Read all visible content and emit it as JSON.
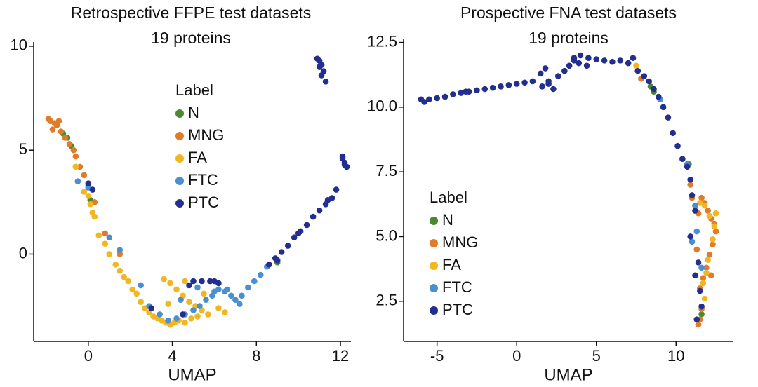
{
  "chart_data": [
    {
      "type": "scatter",
      "title": "Retrospective FFPE test datasets",
      "subtitle": "19 proteins",
      "x_label": "UMAP",
      "legend_title": "Label",
      "xlim": [
        -2.6,
        12.5
      ],
      "ylim": [
        -4.2,
        10.2
      ],
      "xticks": [
        0,
        4,
        8,
        12
      ],
      "yticks": [
        0,
        5,
        10
      ],
      "grid": false,
      "series": [
        {
          "name": "N",
          "color": "#4a8a2f",
          "x": [
            -1.2,
            -1.0,
            -0.8,
            0.1,
            9.0
          ],
          "values": [
            5.8,
            5.6,
            5.2,
            2.6,
            -0.4
          ]
        },
        {
          "name": "MNG",
          "color": "#e07b2a",
          "x": [
            -1.9,
            -1.8,
            -1.6,
            -1.5,
            -1.3,
            -1.1,
            -0.9,
            -0.7,
            -0.6,
            -0.4,
            -0.2,
            0.0,
            0.3,
            0.8,
            1.5,
            -1.7,
            -1.4
          ],
          "values": [
            6.5,
            6.4,
            6.3,
            6.2,
            5.9,
            5.6,
            5.3,
            5.0,
            4.7,
            4.2,
            3.8,
            3.3,
            2.5,
            1.0,
            0.0,
            6.0,
            6.4
          ]
        },
        {
          "name": "FA",
          "color": "#f2b623",
          "x": [
            0.0,
            0.1,
            0.2,
            0.3,
            0.5,
            0.8,
            1.0,
            1.3,
            1.5,
            1.7,
            1.9,
            2.1,
            2.3,
            2.5,
            2.7,
            2.9,
            3.1,
            3.3,
            3.5,
            3.7,
            3.9,
            4.1,
            4.3,
            4.6,
            4.9,
            5.2,
            3.6,
            3.9,
            4.2,
            4.5,
            4.8,
            5.1,
            5.4,
            5.7,
            3.8,
            4.6,
            5.5,
            6.2,
            6.5,
            -0.2,
            -0.6
          ],
          "values": [
            2.8,
            2.4,
            2.0,
            1.8,
            0.9,
            0.5,
            0.0,
            -0.5,
            -0.8,
            -1.1,
            -1.3,
            -1.7,
            -1.9,
            -2.3,
            -2.6,
            -2.8,
            -3.0,
            -3.1,
            -3.2,
            -3.3,
            -3.4,
            -3.3,
            -3.2,
            -3.3,
            -3.1,
            -3.0,
            -1.2,
            -1.4,
            -1.7,
            -2.0,
            -2.3,
            -2.5,
            -2.7,
            -2.9,
            -2.4,
            -1.3,
            -1.9,
            -2.6,
            -2.8,
            3.0,
            4.2
          ]
        },
        {
          "name": "FTC",
          "color": "#4a90d0",
          "x": [
            7.3,
            7.6,
            7.9,
            8.2,
            8.5,
            7.0,
            6.8,
            6.5,
            6.2,
            5.9,
            5.6,
            5.3,
            5.0,
            4.6,
            4.2,
            3.8,
            3.4,
            2.9,
            6.0,
            6.6,
            7.2,
            0.0,
            -0.5,
            1.0,
            1.5,
            2.5,
            4.4,
            5.2
          ],
          "values": [
            -2.0,
            -1.6,
            -1.3,
            -1.0,
            -0.6,
            -2.2,
            -2.0,
            -1.8,
            -1.7,
            -2.0,
            -2.2,
            -2.5,
            -2.7,
            -2.9,
            -3.1,
            -3.2,
            -2.9,
            -2.5,
            -1.8,
            -1.7,
            -2.4,
            3.2,
            3.5,
            0.8,
            0.2,
            -1.5,
            -2.2,
            -1.6
          ]
        },
        {
          "name": "PTC",
          "color": "#232f8f",
          "x": [
            10.9,
            11.0,
            11.1,
            11.2,
            11.0,
            11.3,
            11.1,
            12.1,
            12.2,
            12.3,
            12.2,
            12.1,
            8.6,
            8.9,
            9.2,
            9.5,
            9.8,
            10.1,
            10.4,
            10.7,
            11.0,
            11.3,
            11.6,
            11.8,
            9.0,
            10.0,
            11.4,
            5.0,
            5.4,
            5.8,
            6.2,
            4.8,
            6.0,
            0.0,
            0.2,
            4.5,
            3.0
          ],
          "values": [
            9.4,
            9.3,
            9.1,
            8.8,
            9.0,
            8.3,
            8.6,
            4.6,
            4.4,
            4.2,
            4.3,
            4.7,
            -0.5,
            -0.2,
            0.1,
            0.4,
            0.8,
            1.1,
            1.4,
            1.8,
            2.1,
            2.4,
            2.7,
            3.1,
            -0.3,
            1.0,
            2.6,
            -1.3,
            -1.3,
            -1.3,
            -1.4,
            -1.5,
            -1.3,
            3.4,
            3.1,
            -2.9,
            -2.6
          ]
        }
      ]
    },
    {
      "type": "scatter",
      "title": "Prospective FNA test datasets",
      "subtitle": "19 proteins",
      "x_label": "UMAP",
      "legend_title": "Label",
      "xlim": [
        -7.1,
        13.6
      ],
      "ylim": [
        0.95,
        12.65
      ],
      "xticks": [
        -5,
        0,
        5,
        10
      ],
      "yticks": [
        2.5,
        {
          "value": 5,
          "label": "5.0"
        },
        7.5,
        {
          "value": 10,
          "label": "10.0"
        },
        12.5
      ],
      "grid": false,
      "series": [
        {
          "name": "N",
          "color": "#4a8a2f",
          "x": [
            8.4,
            8.6,
            10.8,
            11.6
          ],
          "values": [
            10.8,
            10.6,
            7.8,
            2.0
          ]
        },
        {
          "name": "MNG",
          "color": "#e07b2a",
          "x": [
            7.8,
            10.9,
            11.0,
            11.2,
            11.4,
            11.6,
            11.8,
            12.0,
            12.2,
            12.4,
            12.5,
            12.3,
            12.1,
            11.9,
            11.7,
            11.5,
            11.3,
            11.6,
            11.5,
            11.4,
            12.2
          ],
          "values": [
            11.1,
            7.0,
            6.5,
            6.2,
            5.9,
            6.5,
            6.3,
            6.0,
            5.7,
            5.5,
            5.2,
            4.7,
            4.3,
            3.8,
            3.4,
            3.0,
            4.5,
            2.2,
            1.8,
            1.6,
            3.5
          ]
        },
        {
          "name": "FA",
          "color": "#f2b623",
          "x": [
            7.5,
            11.5,
            11.8,
            12.1,
            12.4,
            12.3,
            12.0,
            11.7,
            11.9,
            12.5,
            11.8
          ],
          "values": [
            11.6,
            6.3,
            6.2,
            5.8,
            5.4,
            4.9,
            4.1,
            3.2,
            3.6,
            5.9,
            2.6
          ]
        },
        {
          "name": "FTC",
          "color": "#4a90d0",
          "x": [
            9.0,
            10.7,
            11.3,
            11.0,
            11.6,
            11.2
          ],
          "values": [
            10.3,
            7.8,
            5.2,
            4.8,
            3.8,
            6.2
          ]
        },
        {
          "name": "PTC",
          "color": "#232f8f",
          "x": [
            -6.0,
            -5.5,
            -5.0,
            -4.5,
            -4.0,
            -3.5,
            -3.0,
            -2.5,
            -2.0,
            -1.5,
            -1.0,
            -0.5,
            0.0,
            0.5,
            1.0,
            1.5,
            1.8,
            2.0,
            2.3,
            2.6,
            3.0,
            3.3,
            3.6,
            4.0,
            4.5,
            5.0,
            5.5,
            6.0,
            6.5,
            7.0,
            7.3,
            7.6,
            8.0,
            8.3,
            8.6,
            8.9,
            9.2,
            9.5,
            9.8,
            10.1,
            10.4,
            10.7,
            10.9,
            11.0,
            11.2,
            10.9,
            11.4,
            11.2,
            11.5,
            11.6,
            11.3,
            1.6,
            2.0,
            3.6,
            4.4,
            -5.8,
            -3.2,
            3.9
          ],
          "values": [
            10.3,
            10.3,
            10.35,
            10.4,
            10.5,
            10.55,
            10.6,
            10.65,
            10.7,
            10.75,
            10.8,
            10.85,
            10.9,
            10.95,
            11.0,
            11.3,
            11.5,
            10.9,
            10.7,
            11.2,
            11.4,
            11.6,
            11.9,
            12.0,
            11.9,
            11.85,
            11.8,
            11.75,
            11.8,
            11.7,
            11.9,
            11.4,
            11.2,
            11.0,
            10.7,
            10.4,
            10.0,
            9.6,
            9.0,
            8.5,
            8.0,
            7.7,
            7.2,
            6.6,
            6.0,
            5.0,
            4.0,
            3.5,
            2.9,
            2.3,
            1.8,
            10.8,
            11.0,
            11.8,
            11.6,
            10.2,
            10.6,
            11.7
          ]
        }
      ]
    }
  ]
}
